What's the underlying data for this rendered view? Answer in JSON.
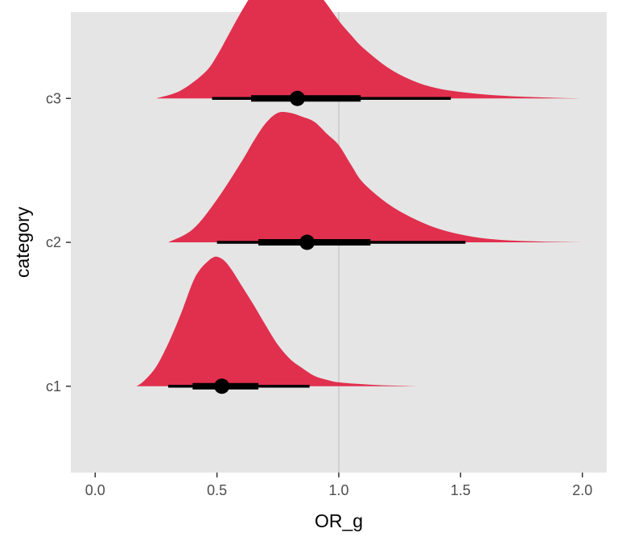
{
  "chart_data": {
    "type": "halfeye",
    "title": "",
    "xlabel": "OR_g",
    "ylabel": "category",
    "xlim": [
      -0.1,
      2.1
    ],
    "xticks": [
      0.0,
      0.5,
      1.0,
      1.5,
      2.0
    ],
    "xtick_labels": [
      "0.0",
      "0.5",
      "1.0",
      "1.5",
      "2.0"
    ],
    "categories": [
      "c1",
      "c2",
      "c3"
    ],
    "reference_line_x": 1.0,
    "grid": false,
    "panel_background": "#e5e5e5",
    "fill_color": "#e0304e",
    "interval_color": "#000000",
    "reference_line_color": "#c8c8c8",
    "series": [
      {
        "category": "c1",
        "point": 0.52,
        "interval_66": [
          0.4,
          0.67
        ],
        "interval_95": [
          0.3,
          0.88
        ],
        "density": {
          "x": [
            0.17,
            0.2,
            0.25,
            0.3,
            0.35,
            0.4,
            0.43,
            0.46,
            0.48,
            0.5,
            0.53,
            0.56,
            0.6,
            0.65,
            0.7,
            0.75,
            0.8,
            0.85,
            0.9,
            0.95,
            1.0,
            1.1,
            1.2,
            1.34
          ],
          "y": [
            0.0,
            0.04,
            0.15,
            0.33,
            0.55,
            0.8,
            0.9,
            0.96,
            0.99,
            1.0,
            0.97,
            0.9,
            0.78,
            0.63,
            0.47,
            0.32,
            0.21,
            0.14,
            0.08,
            0.05,
            0.03,
            0.015,
            0.006,
            0.0
          ]
        }
      },
      {
        "category": "c2",
        "point": 0.87,
        "interval_66": [
          0.67,
          1.13
        ],
        "interval_95": [
          0.5,
          1.52
        ],
        "density": {
          "x": [
            0.3,
            0.4,
            0.5,
            0.6,
            0.65,
            0.7,
            0.75,
            0.8,
            0.85,
            0.9,
            0.95,
            1.0,
            1.05,
            1.1,
            1.2,
            1.3,
            1.4,
            1.5,
            1.6,
            1.7,
            1.8,
            1.9,
            2.0
          ],
          "y": [
            0.0,
            0.1,
            0.33,
            0.62,
            0.78,
            0.92,
            1.0,
            1.0,
            0.97,
            0.93,
            0.84,
            0.75,
            0.6,
            0.46,
            0.3,
            0.19,
            0.11,
            0.06,
            0.03,
            0.015,
            0.008,
            0.003,
            0.0
          ]
        }
      },
      {
        "category": "c3",
        "point": 0.83,
        "interval_66": [
          0.64,
          1.09
        ],
        "interval_95": [
          0.48,
          1.46
        ],
        "density": {
          "x": [
            0.25,
            0.35,
            0.45,
            0.5,
            0.55,
            0.6,
            0.65,
            0.7,
            0.75,
            0.8,
            0.85,
            0.9,
            0.95,
            1.0,
            1.05,
            1.1,
            1.2,
            1.3,
            1.4,
            1.5,
            1.6,
            1.7,
            1.8,
            1.9,
            2.0
          ],
          "y": [
            0.0,
            0.06,
            0.2,
            0.33,
            0.5,
            0.67,
            0.82,
            0.93,
            0.98,
            1.0,
            0.95,
            0.85,
            0.73,
            0.6,
            0.49,
            0.39,
            0.24,
            0.14,
            0.08,
            0.05,
            0.03,
            0.018,
            0.01,
            0.004,
            0.0
          ]
        }
      }
    ]
  }
}
